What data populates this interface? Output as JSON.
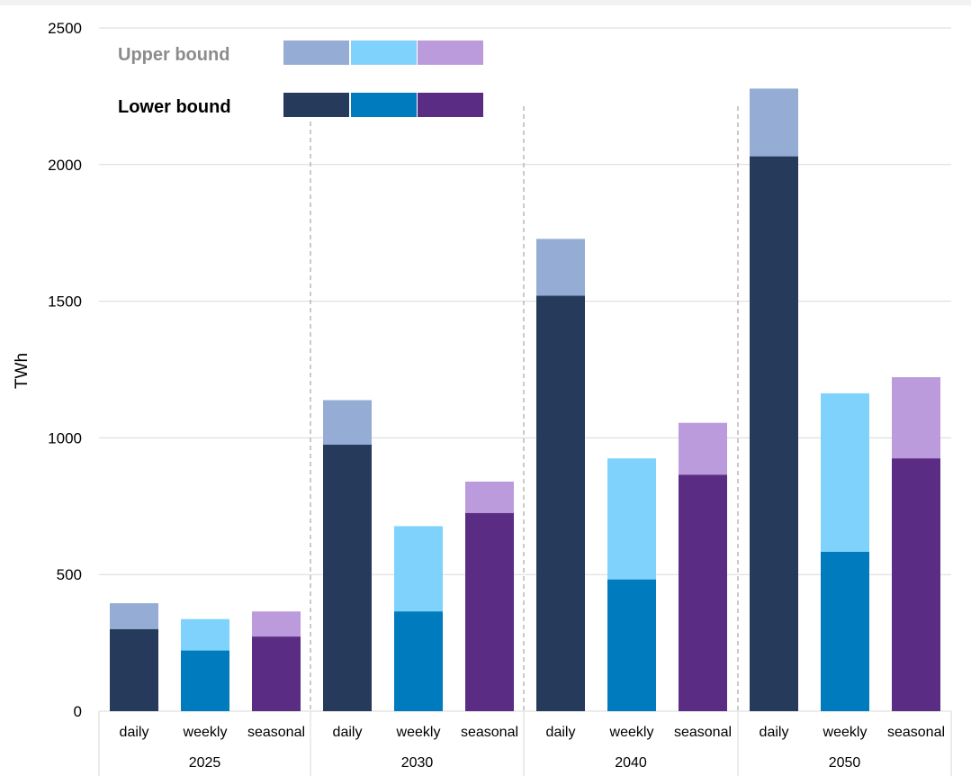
{
  "chart_data": {
    "type": "bar",
    "stacked": true,
    "ylabel": "TWh",
    "ylim": [
      0,
      2500
    ],
    "yticks": [
      "0",
      "500",
      "1000",
      "1500",
      "2000",
      "2500"
    ],
    "grid": true,
    "groups": [
      {
        "label": "2025",
        "bars": [
          {
            "category": "daily",
            "lower": 300,
            "upper": 395
          },
          {
            "category": "weekly",
            "lower": 222,
            "upper": 337
          },
          {
            "category": "seasonal",
            "lower": 273,
            "upper": 365
          }
        ]
      },
      {
        "label": "2030",
        "bars": [
          {
            "category": "daily",
            "lower": 975,
            "upper": 1138
          },
          {
            "category": "weekly",
            "lower": 365,
            "upper": 677
          },
          {
            "category": "seasonal",
            "lower": 725,
            "upper": 840
          }
        ]
      },
      {
        "label": "2040",
        "bars": [
          {
            "category": "daily",
            "lower": 1520,
            "upper": 1728
          },
          {
            "category": "weekly",
            "lower": 482,
            "upper": 925
          },
          {
            "category": "seasonal",
            "lower": 865,
            "upper": 1055
          }
        ]
      },
      {
        "label": "2050",
        "bars": [
          {
            "category": "daily",
            "lower": 2030,
            "upper": 2278
          },
          {
            "category": "weekly",
            "lower": 583,
            "upper": 1163
          },
          {
            "category": "seasonal",
            "lower": 925,
            "upper": 1222
          }
        ]
      }
    ],
    "legend": {
      "placement": "top-left",
      "upper_label": "Upper bound",
      "lower_label": "Lower bound"
    },
    "colors": {
      "daily": {
        "lower": "#263a5c",
        "upper": "#95acd5"
      },
      "weekly": {
        "lower": "#007bbd",
        "upper": "#7fd2fc"
      },
      "seasonal": {
        "lower": "#5a2c84",
        "upper": "#bb9bdc"
      }
    }
  }
}
